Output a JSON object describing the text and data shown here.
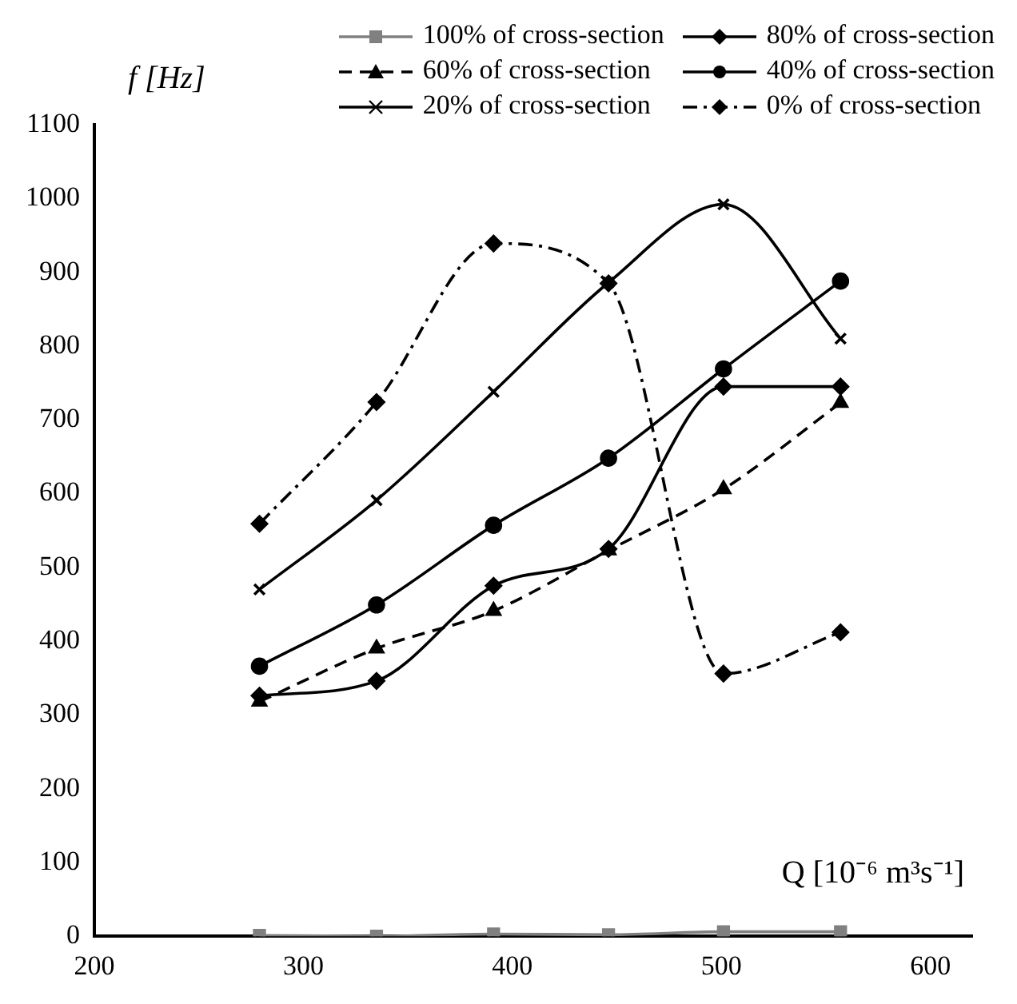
{
  "chart_data": {
    "type": "line",
    "xlabel": "Q [10⁻⁶ m³s⁻¹]",
    "ylabel": "f [Hz]",
    "xlim": [
      200,
      620
    ],
    "xticks": [
      200,
      300,
      400,
      500,
      600
    ],
    "ylim": [
      0,
      1100
    ],
    "yticks": [
      0,
      100,
      200,
      300,
      400,
      500,
      600,
      700,
      800,
      900,
      {
        "value": 1000,
        "label": "1000"
      },
      {
        "value": 1100,
        "label": "1100"
      }
    ],
    "grid": false,
    "legend": "top",
    "series": [
      {
        "name": "100% of cross-section",
        "color": "#808080",
        "marker": "square",
        "line_style": "solid",
        "x": [
          279,
          335,
          391,
          446,
          501,
          557
        ],
        "values": [
          1,
          0,
          3,
          2,
          6,
          6
        ]
      },
      {
        "name": "80% of cross-section",
        "color": "#000000",
        "marker": "diamond",
        "line_style": "solid",
        "x": [
          279,
          335,
          391,
          446,
          501,
          557
        ],
        "values": [
          326,
          346,
          475,
          525,
          745,
          745
        ]
      },
      {
        "name": "60% of cross-section",
        "color": "#000000",
        "marker": "triangle",
        "line_style": "dashed",
        "x": [
          279,
          335,
          391,
          446,
          501,
          557
        ],
        "values": [
          318,
          390,
          441,
          523,
          606,
          723
        ]
      },
      {
        "name": "40% of cross-section",
        "color": "#000000",
        "marker": "circle",
        "line_style": "solid",
        "x": [
          279,
          335,
          391,
          446,
          501,
          557
        ],
        "values": [
          366,
          449,
          557,
          648,
          769,
          888
        ]
      },
      {
        "name": "20% of cross-section",
        "color": "#000000",
        "marker": "cross",
        "line_style": "solid",
        "x": [
          279,
          335,
          391,
          446,
          501,
          557
        ],
        "values": [
          470,
          591,
          738,
          886,
          992,
          810
        ]
      },
      {
        "name": "0% of cross-section",
        "color": "#000000",
        "marker": "diamond",
        "line_style": "dotted",
        "x": [
          279,
          335,
          391,
          446,
          501,
          557
        ],
        "values": [
          559,
          724,
          939,
          885,
          356,
          412
        ]
      }
    ]
  }
}
